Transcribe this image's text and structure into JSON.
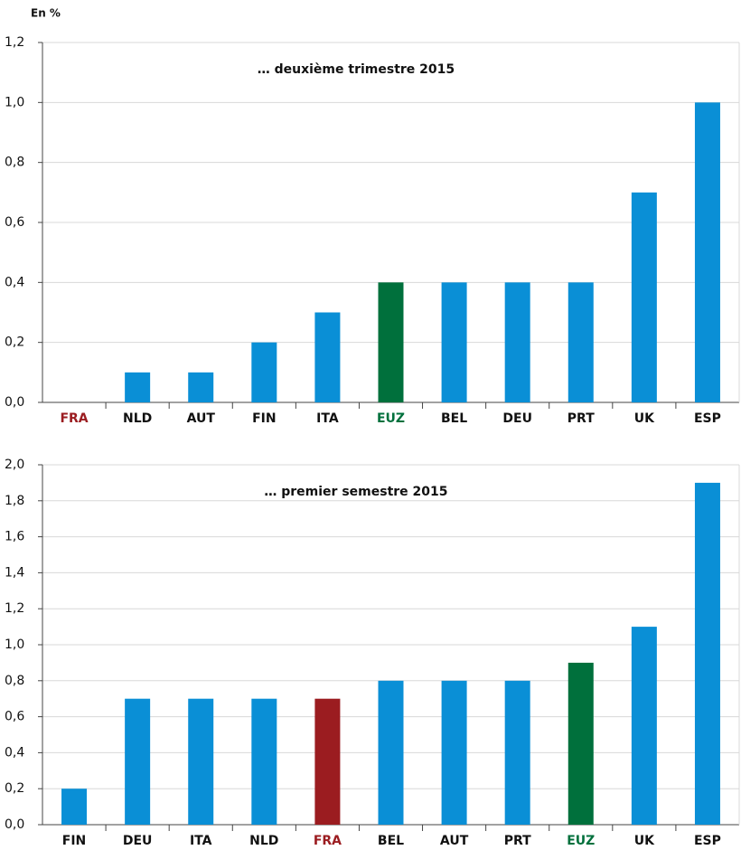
{
  "unit_label": "En %",
  "chart_data": [
    {
      "type": "bar",
      "title": "… deuxième trimestre 2015",
      "categories": [
        "FRA",
        "NLD",
        "AUT",
        "FIN",
        "ITA",
        "EUZ",
        "BEL",
        "DEU",
        "PRT",
        "UK",
        "ESP"
      ],
      "values": [
        0,
        0.1,
        0.1,
        0.2,
        0.3,
        0.4,
        0.4,
        0.4,
        0.4,
        0.7,
        1.0
      ],
      "color": "#0a8fd6",
      "colors": [
        "#9b1c20",
        "#0a8fd6",
        "#0a8fd6",
        "#0a8fd6",
        "#0a8fd6",
        "#00703c",
        "#0a8fd6",
        "#0a8fd6",
        "#0a8fd6",
        "#0a8fd6",
        "#0a8fd6"
      ],
      "ylim": [
        0,
        1.2
      ],
      "yticks": [
        {
          "value": 0,
          "label": "0,0"
        },
        {
          "value": 0.2,
          "label": "0,2"
        },
        {
          "value": 0.4,
          "label": "0,4"
        },
        {
          "value": 0.6,
          "label": "0,6"
        },
        {
          "value": 0.8,
          "label": "0,8"
        },
        {
          "value": 1.0,
          "label": "1,0"
        },
        {
          "value": 1.2,
          "label": "1,2"
        }
      ],
      "grid": true
    },
    {
      "type": "bar",
      "title": "… premier semestre 2015",
      "categories": [
        "FIN",
        "DEU",
        "ITA",
        "NLD",
        "FRA",
        "BEL",
        "AUT",
        "PRT",
        "EUZ",
        "UK",
        "ESP"
      ],
      "values": [
        0.2,
        0.7,
        0.7,
        0.7,
        0.7,
        0.8,
        0.8,
        0.8,
        0.9,
        1.1,
        1.9
      ],
      "color": "#0a8fd6",
      "colors": [
        "#0a8fd6",
        "#0a8fd6",
        "#0a8fd6",
        "#0a8fd6",
        "#9b1c20",
        "#0a8fd6",
        "#0a8fd6",
        "#0a8fd6",
        "#00703c",
        "#0a8fd6",
        "#0a8fd6"
      ],
      "ylim": [
        0,
        2.0
      ],
      "yticks": [
        {
          "value": 0,
          "label": "0,0"
        },
        {
          "value": 0.2,
          "label": "0,2"
        },
        {
          "value": 0.4,
          "label": "0,4"
        },
        {
          "value": 0.6,
          "label": "0,6"
        },
        {
          "value": 0.8,
          "label": "0,8"
        },
        {
          "value": 1.0,
          "label": "1,0"
        },
        {
          "value": 1.2,
          "label": "1,2"
        },
        {
          "value": 1.4,
          "label": "1,4"
        },
        {
          "value": 1.6,
          "label": "1,6"
        },
        {
          "value": 1.8,
          "label": "1,8"
        },
        {
          "value": 2.0,
          "label": "2,0"
        }
      ],
      "grid": true
    }
  ]
}
